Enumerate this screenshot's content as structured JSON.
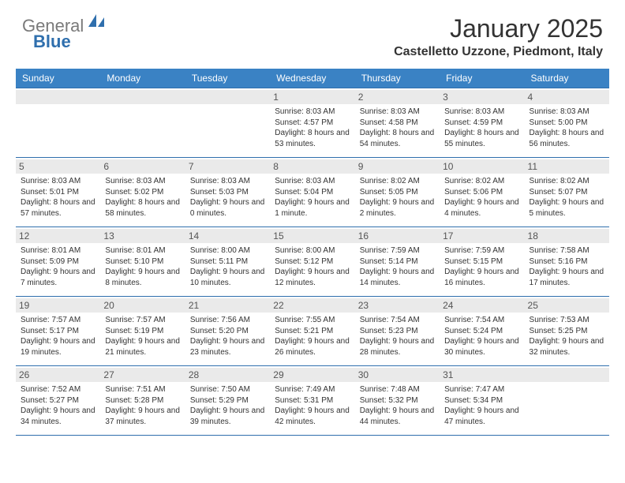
{
  "logo": {
    "general": "General",
    "blue": "Blue"
  },
  "title": "January 2025",
  "location": "Castelletto Uzzone, Piedmont, Italy",
  "headers": [
    "Sunday",
    "Monday",
    "Tuesday",
    "Wednesday",
    "Thursday",
    "Friday",
    "Saturday"
  ],
  "colors": {
    "header_bg": "#3a82c4",
    "header_text": "#ffffff",
    "border": "#2f6fad",
    "daybar": "#eaeaea",
    "text": "#333333",
    "logo_gray": "#7a7a7a",
    "logo_blue": "#2f6fad",
    "background": "#ffffff"
  },
  "weeks": [
    [
      {
        "n": "",
        "sr": "",
        "ss": "",
        "dl": ""
      },
      {
        "n": "",
        "sr": "",
        "ss": "",
        "dl": ""
      },
      {
        "n": "",
        "sr": "",
        "ss": "",
        "dl": ""
      },
      {
        "n": "1",
        "sr": "Sunrise: 8:03 AM",
        "ss": "Sunset: 4:57 PM",
        "dl": "Daylight: 8 hours and 53 minutes."
      },
      {
        "n": "2",
        "sr": "Sunrise: 8:03 AM",
        "ss": "Sunset: 4:58 PM",
        "dl": "Daylight: 8 hours and 54 minutes."
      },
      {
        "n": "3",
        "sr": "Sunrise: 8:03 AM",
        "ss": "Sunset: 4:59 PM",
        "dl": "Daylight: 8 hours and 55 minutes."
      },
      {
        "n": "4",
        "sr": "Sunrise: 8:03 AM",
        "ss": "Sunset: 5:00 PM",
        "dl": "Daylight: 8 hours and 56 minutes."
      }
    ],
    [
      {
        "n": "5",
        "sr": "Sunrise: 8:03 AM",
        "ss": "Sunset: 5:01 PM",
        "dl": "Daylight: 8 hours and 57 minutes."
      },
      {
        "n": "6",
        "sr": "Sunrise: 8:03 AM",
        "ss": "Sunset: 5:02 PM",
        "dl": "Daylight: 8 hours and 58 minutes."
      },
      {
        "n": "7",
        "sr": "Sunrise: 8:03 AM",
        "ss": "Sunset: 5:03 PM",
        "dl": "Daylight: 9 hours and 0 minutes."
      },
      {
        "n": "8",
        "sr": "Sunrise: 8:03 AM",
        "ss": "Sunset: 5:04 PM",
        "dl": "Daylight: 9 hours and 1 minute."
      },
      {
        "n": "9",
        "sr": "Sunrise: 8:02 AM",
        "ss": "Sunset: 5:05 PM",
        "dl": "Daylight: 9 hours and 2 minutes."
      },
      {
        "n": "10",
        "sr": "Sunrise: 8:02 AM",
        "ss": "Sunset: 5:06 PM",
        "dl": "Daylight: 9 hours and 4 minutes."
      },
      {
        "n": "11",
        "sr": "Sunrise: 8:02 AM",
        "ss": "Sunset: 5:07 PM",
        "dl": "Daylight: 9 hours and 5 minutes."
      }
    ],
    [
      {
        "n": "12",
        "sr": "Sunrise: 8:01 AM",
        "ss": "Sunset: 5:09 PM",
        "dl": "Daylight: 9 hours and 7 minutes."
      },
      {
        "n": "13",
        "sr": "Sunrise: 8:01 AM",
        "ss": "Sunset: 5:10 PM",
        "dl": "Daylight: 9 hours and 8 minutes."
      },
      {
        "n": "14",
        "sr": "Sunrise: 8:00 AM",
        "ss": "Sunset: 5:11 PM",
        "dl": "Daylight: 9 hours and 10 minutes."
      },
      {
        "n": "15",
        "sr": "Sunrise: 8:00 AM",
        "ss": "Sunset: 5:12 PM",
        "dl": "Daylight: 9 hours and 12 minutes."
      },
      {
        "n": "16",
        "sr": "Sunrise: 7:59 AM",
        "ss": "Sunset: 5:14 PM",
        "dl": "Daylight: 9 hours and 14 minutes."
      },
      {
        "n": "17",
        "sr": "Sunrise: 7:59 AM",
        "ss": "Sunset: 5:15 PM",
        "dl": "Daylight: 9 hours and 16 minutes."
      },
      {
        "n": "18",
        "sr": "Sunrise: 7:58 AM",
        "ss": "Sunset: 5:16 PM",
        "dl": "Daylight: 9 hours and 17 minutes."
      }
    ],
    [
      {
        "n": "19",
        "sr": "Sunrise: 7:57 AM",
        "ss": "Sunset: 5:17 PM",
        "dl": "Daylight: 9 hours and 19 minutes."
      },
      {
        "n": "20",
        "sr": "Sunrise: 7:57 AM",
        "ss": "Sunset: 5:19 PM",
        "dl": "Daylight: 9 hours and 21 minutes."
      },
      {
        "n": "21",
        "sr": "Sunrise: 7:56 AM",
        "ss": "Sunset: 5:20 PM",
        "dl": "Daylight: 9 hours and 23 minutes."
      },
      {
        "n": "22",
        "sr": "Sunrise: 7:55 AM",
        "ss": "Sunset: 5:21 PM",
        "dl": "Daylight: 9 hours and 26 minutes."
      },
      {
        "n": "23",
        "sr": "Sunrise: 7:54 AM",
        "ss": "Sunset: 5:23 PM",
        "dl": "Daylight: 9 hours and 28 minutes."
      },
      {
        "n": "24",
        "sr": "Sunrise: 7:54 AM",
        "ss": "Sunset: 5:24 PM",
        "dl": "Daylight: 9 hours and 30 minutes."
      },
      {
        "n": "25",
        "sr": "Sunrise: 7:53 AM",
        "ss": "Sunset: 5:25 PM",
        "dl": "Daylight: 9 hours and 32 minutes."
      }
    ],
    [
      {
        "n": "26",
        "sr": "Sunrise: 7:52 AM",
        "ss": "Sunset: 5:27 PM",
        "dl": "Daylight: 9 hours and 34 minutes."
      },
      {
        "n": "27",
        "sr": "Sunrise: 7:51 AM",
        "ss": "Sunset: 5:28 PM",
        "dl": "Daylight: 9 hours and 37 minutes."
      },
      {
        "n": "28",
        "sr": "Sunrise: 7:50 AM",
        "ss": "Sunset: 5:29 PM",
        "dl": "Daylight: 9 hours and 39 minutes."
      },
      {
        "n": "29",
        "sr": "Sunrise: 7:49 AM",
        "ss": "Sunset: 5:31 PM",
        "dl": "Daylight: 9 hours and 42 minutes."
      },
      {
        "n": "30",
        "sr": "Sunrise: 7:48 AM",
        "ss": "Sunset: 5:32 PM",
        "dl": "Daylight: 9 hours and 44 minutes."
      },
      {
        "n": "31",
        "sr": "Sunrise: 7:47 AM",
        "ss": "Sunset: 5:34 PM",
        "dl": "Daylight: 9 hours and 47 minutes."
      },
      {
        "n": "",
        "sr": "",
        "ss": "",
        "dl": ""
      }
    ]
  ]
}
